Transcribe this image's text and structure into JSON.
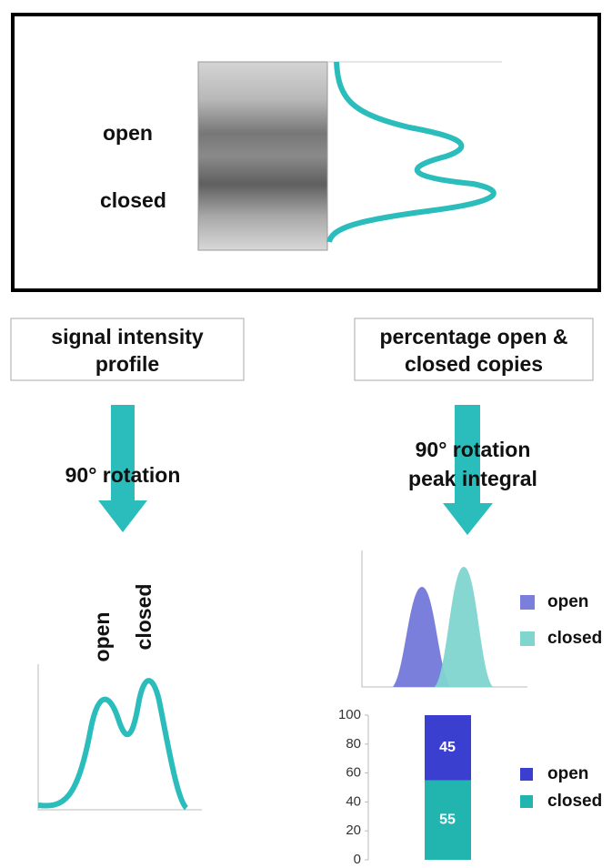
{
  "gel": {
    "labels": [
      "open",
      "closed"
    ]
  },
  "boxes": [
    {
      "lines": [
        "signal intensity",
        "profile"
      ]
    },
    {
      "lines": [
        "percentage open &",
        "closed copies"
      ]
    }
  ],
  "arrows": [
    {
      "lines": [
        "90° rotation"
      ]
    },
    {
      "lines": [
        "90° rotation",
        "peak integral"
      ]
    }
  ],
  "profile": {
    "labels": [
      "open",
      "closed"
    ]
  },
  "peaks": {
    "legend": [
      {
        "name": "open",
        "color": "#7b7fdc"
      },
      {
        "name": "closed",
        "color": "#80d5cf"
      }
    ]
  },
  "bar_chart": {
    "type": "bar",
    "stacked": true,
    "ylim": [
      0,
      100
    ],
    "yticks": [
      0,
      20,
      40,
      60,
      80,
      100
    ],
    "series": [
      {
        "name": "open",
        "color": "#3a3fcf",
        "values": [
          45
        ]
      },
      {
        "name": "closed",
        "color": "#22b5b0",
        "values": [
          55
        ]
      }
    ]
  }
}
